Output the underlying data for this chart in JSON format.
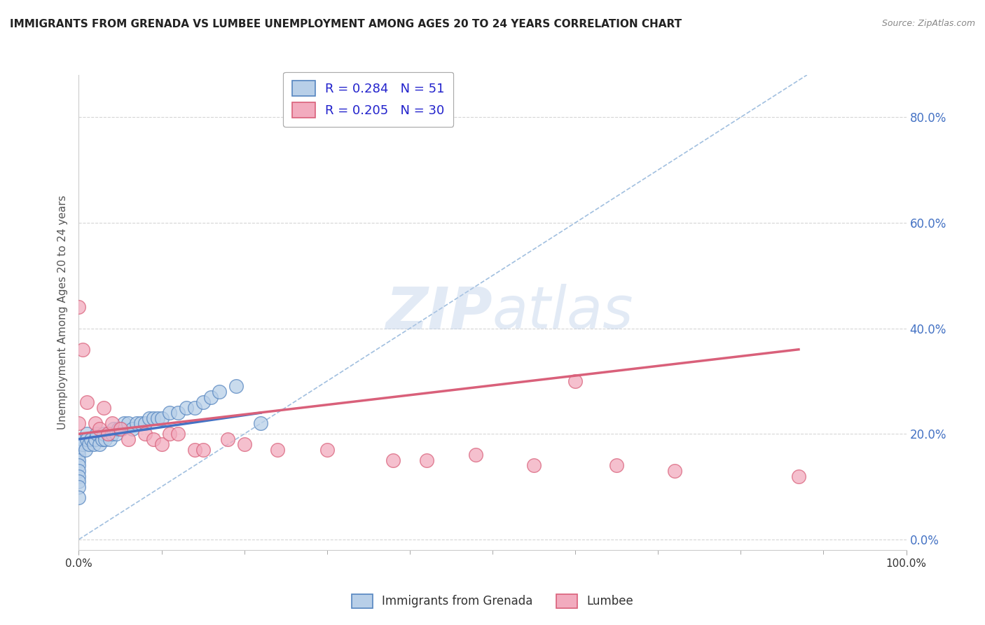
{
  "title": "IMMIGRANTS FROM GRENADA VS LUMBEE UNEMPLOYMENT AMONG AGES 20 TO 24 YEARS CORRELATION CHART",
  "source": "Source: ZipAtlas.com",
  "ylabel": "Unemployment Among Ages 20 to 24 years",
  "xlim": [
    0.0,
    1.0
  ],
  "ylim": [
    -0.02,
    0.88
  ],
  "yticks": [
    0.0,
    0.2,
    0.4,
    0.6,
    0.8
  ],
  "ytick_labels": [
    "0.0%",
    "20.0%",
    "40.0%",
    "60.0%",
    "80.0%"
  ],
  "xtick_labels": [
    "0.0%",
    "",
    "",
    "",
    "",
    "",
    "",
    "",
    "",
    "100.0%"
  ],
  "xticks": [
    0.0,
    0.1,
    0.2,
    0.3,
    0.4,
    0.5,
    0.6,
    0.7,
    0.8,
    1.0
  ],
  "grenada_color": "#b8cfe8",
  "lumbee_color": "#f2abbe",
  "grenada_edge_color": "#5585c0",
  "lumbee_edge_color": "#d9607a",
  "trend_grenada_color": "#4472c4",
  "trend_lumbee_color": "#d9607a",
  "ref_line_color": "#8ab0d8",
  "legend_R_grenada": "0.284",
  "legend_N_grenada": "51",
  "legend_R_lumbee": "0.205",
  "legend_N_lumbee": "30",
  "watermark_text": "ZIPatlas",
  "background_color": "#ffffff",
  "grenada_scatter_x": [
    0.0,
    0.0,
    0.0,
    0.0,
    0.0,
    0.0,
    0.0,
    0.0,
    0.0,
    0.0,
    0.005,
    0.005,
    0.008,
    0.01,
    0.01,
    0.012,
    0.015,
    0.018,
    0.02,
    0.022,
    0.025,
    0.028,
    0.03,
    0.032,
    0.035,
    0.038,
    0.04,
    0.042,
    0.045,
    0.048,
    0.05,
    0.052,
    0.055,
    0.06,
    0.065,
    0.07,
    0.075,
    0.08,
    0.085,
    0.09,
    0.095,
    0.1,
    0.11,
    0.12,
    0.13,
    0.14,
    0.15,
    0.16,
    0.17,
    0.19,
    0.22
  ],
  "grenada_scatter_y": [
    0.18,
    0.17,
    0.16,
    0.15,
    0.14,
    0.13,
    0.12,
    0.11,
    0.1,
    0.08,
    0.19,
    0.18,
    0.17,
    0.2,
    0.19,
    0.18,
    0.19,
    0.18,
    0.19,
    0.2,
    0.18,
    0.19,
    0.2,
    0.19,
    0.2,
    0.19,
    0.2,
    0.21,
    0.2,
    0.21,
    0.21,
    0.21,
    0.22,
    0.22,
    0.21,
    0.22,
    0.22,
    0.22,
    0.23,
    0.23,
    0.23,
    0.23,
    0.24,
    0.24,
    0.25,
    0.25,
    0.26,
    0.27,
    0.28,
    0.29,
    0.22
  ],
  "lumbee_scatter_x": [
    0.0,
    0.0,
    0.005,
    0.01,
    0.02,
    0.025,
    0.03,
    0.035,
    0.04,
    0.05,
    0.06,
    0.08,
    0.09,
    0.1,
    0.11,
    0.12,
    0.14,
    0.15,
    0.18,
    0.2,
    0.24,
    0.3,
    0.38,
    0.42,
    0.48,
    0.55,
    0.6,
    0.65,
    0.72,
    0.87
  ],
  "lumbee_scatter_y": [
    0.44,
    0.22,
    0.36,
    0.26,
    0.22,
    0.21,
    0.25,
    0.2,
    0.22,
    0.21,
    0.19,
    0.2,
    0.19,
    0.18,
    0.2,
    0.2,
    0.17,
    0.17,
    0.19,
    0.18,
    0.17,
    0.17,
    0.15,
    0.15,
    0.16,
    0.14,
    0.3,
    0.14,
    0.13,
    0.12
  ],
  "grenada_trend_x": [
    0.0,
    0.22
  ],
  "grenada_trend_y": [
    0.19,
    0.24
  ],
  "lumbee_trend_x": [
    0.0,
    0.87
  ],
  "lumbee_trend_y": [
    0.2,
    0.36
  ],
  "ref_line_x": [
    0.0,
    0.88
  ],
  "ref_line_y": [
    0.0,
    0.88
  ]
}
